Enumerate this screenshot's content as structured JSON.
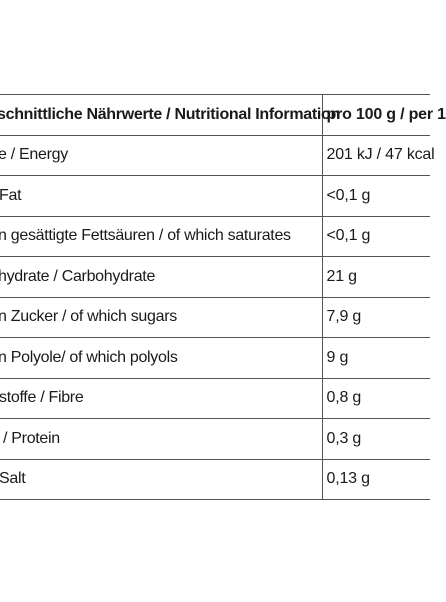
{
  "table": {
    "header": {
      "label": "schnittliche Nährwerte / Nutritional Information",
      "value": "pro 100 g / per 1"
    },
    "rows": [
      {
        "label": "e / Energy",
        "value": "201 kJ / 47 kcal"
      },
      {
        "label": "Fat",
        "value": "<0,1 g"
      },
      {
        "label": "n gesättigte Fettsäuren / of which saturates",
        "value": "<0,1 g"
      },
      {
        "label": "hydrate / Carbohydrate",
        "value": "21 g"
      },
      {
        "label": "n Zucker / of which sugars",
        "value": "7,9 g"
      },
      {
        "label": "n Polyole/ of which polyols",
        "value": "9 g"
      },
      {
        "label": "stoffe / Fibre",
        "value": "0,8 g"
      },
      {
        "label": "/ Protein",
        "value": "0,3 g"
      },
      {
        "label": "Salt",
        "value": "0,13 g"
      }
    ]
  }
}
